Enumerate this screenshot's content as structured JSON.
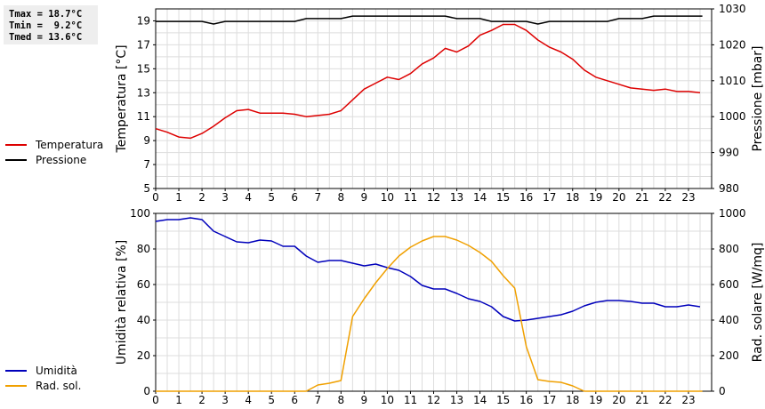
{
  "stats": {
    "tmax": "Tmax = 18.7°C",
    "tmin": "Tmin =  9.2°C",
    "tmed": "Tmed = 13.6°C"
  },
  "chart_data": [
    {
      "type": "line",
      "x_ticks": [
        "0",
        "1",
        "2",
        "3",
        "4",
        "5",
        "6",
        "7",
        "8",
        "9",
        "10",
        "11",
        "12",
        "13",
        "14",
        "15",
        "16",
        "17",
        "18",
        "19",
        "20",
        "21",
        "22",
        "23"
      ],
      "xlim": [
        0,
        24
      ],
      "ylabel_left": "Temperatura [°C]",
      "ylabel_right": "Pressione [mbar]",
      "ylim_left": [
        5,
        20
      ],
      "yticks_left": [
        "5",
        "7",
        "9",
        "11",
        "13",
        "15",
        "17",
        "19"
      ],
      "ylim_right": [
        980,
        1030
      ],
      "yticks_right": [
        "980",
        "990",
        "1000",
        "1010",
        "1020",
        "1030"
      ],
      "grid": true,
      "legend_position": "left",
      "series": [
        {
          "name": "Temperatura",
          "axis": "left",
          "color": "#dd0000",
          "points": [
            [
              0,
              10.0
            ],
            [
              0.5,
              9.7
            ],
            [
              1,
              9.3
            ],
            [
              1.5,
              9.2
            ],
            [
              2,
              9.6
            ],
            [
              2.5,
              10.2
            ],
            [
              3,
              10.9
            ],
            [
              3.5,
              11.5
            ],
            [
              4,
              11.6
            ],
            [
              4.5,
              11.3
            ],
            [
              5,
              11.3
            ],
            [
              5.5,
              11.3
            ],
            [
              6,
              11.2
            ],
            [
              6.5,
              11.0
            ],
            [
              7,
              11.1
            ],
            [
              7.5,
              11.2
            ],
            [
              8,
              11.5
            ],
            [
              8.5,
              12.4
            ],
            [
              9,
              13.3
            ],
            [
              9.5,
              13.8
            ],
            [
              10,
              14.3
            ],
            [
              10.5,
              14.1
            ],
            [
              11,
              14.6
            ],
            [
              11.5,
              15.4
            ],
            [
              12,
              15.9
            ],
            [
              12.5,
              16.7
            ],
            [
              13,
              16.4
            ],
            [
              13.5,
              16.9
            ],
            [
              14,
              17.8
            ],
            [
              14.5,
              18.2
            ],
            [
              15,
              18.7
            ],
            [
              15.5,
              18.7
            ],
            [
              16,
              18.2
            ],
            [
              16.5,
              17.4
            ],
            [
              17,
              16.8
            ],
            [
              17.5,
              16.4
            ],
            [
              18,
              15.8
            ],
            [
              18.5,
              14.9
            ],
            [
              19,
              14.3
            ],
            [
              19.5,
              14.0
            ],
            [
              20,
              13.7
            ],
            [
              20.5,
              13.4
            ],
            [
              21,
              13.3
            ],
            [
              21.5,
              13.2
            ],
            [
              22,
              13.3
            ],
            [
              22.5,
              13.1
            ],
            [
              23,
              13.1
            ],
            [
              23.5,
              13.0
            ]
          ]
        },
        {
          "name": "Pressione",
          "axis": "right",
          "color": "#000000",
          "points": [
            [
              0,
              1026.5
            ],
            [
              2,
              1026.5
            ],
            [
              2.5,
              1025.8
            ],
            [
              3,
              1026.5
            ],
            [
              6,
              1026.5
            ],
            [
              6.5,
              1027.3
            ],
            [
              8,
              1027.3
            ],
            [
              8.5,
              1028.0
            ],
            [
              12.5,
              1028.0
            ],
            [
              13,
              1027.3
            ],
            [
              14,
              1027.3
            ],
            [
              14.5,
              1026.5
            ],
            [
              16,
              1026.5
            ],
            [
              16.5,
              1025.8
            ],
            [
              17,
              1026.5
            ],
            [
              19.5,
              1026.5
            ],
            [
              20,
              1027.3
            ],
            [
              21,
              1027.3
            ],
            [
              21.5,
              1028.0
            ],
            [
              23.6,
              1028.0
            ]
          ]
        }
      ]
    },
    {
      "type": "line",
      "x_ticks": [
        "0",
        "1",
        "2",
        "3",
        "4",
        "5",
        "6",
        "7",
        "8",
        "9",
        "10",
        "11",
        "12",
        "13",
        "14",
        "15",
        "16",
        "17",
        "18",
        "19",
        "20",
        "21",
        "22",
        "23"
      ],
      "xlim": [
        0,
        24
      ],
      "ylabel_left": "Umidità relativa [%]",
      "ylabel_right": "Rad. solare [W/mq]",
      "ylim_left": [
        0,
        100
      ],
      "yticks_left": [
        "0",
        "20",
        "40",
        "60",
        "80",
        "100"
      ],
      "ylim_right": [
        0,
        1000
      ],
      "yticks_right": [
        "0",
        "200",
        "400",
        "600",
        "800",
        "1000"
      ],
      "grid": true,
      "legend_position": "left",
      "series": [
        {
          "name": "Umidità",
          "axis": "left",
          "color": "#0000bb",
          "points": [
            [
              0,
              95.5
            ],
            [
              0.5,
              96.5
            ],
            [
              1,
              96.5
            ],
            [
              1.5,
              97.5
            ],
            [
              2,
              96.5
            ],
            [
              2.5,
              90
            ],
            [
              3,
              87
            ],
            [
              3.5,
              84
            ],
            [
              4,
              83.5
            ],
            [
              4.5,
              85
            ],
            [
              5,
              84.5
            ],
            [
              5.5,
              81.5
            ],
            [
              6,
              81.5
            ],
            [
              6.5,
              76
            ],
            [
              7,
              72.5
            ],
            [
              7.5,
              73.5
            ],
            [
              8,
              73.5
            ],
            [
              8.5,
              72
            ],
            [
              9,
              70.5
            ],
            [
              9.5,
              71.5
            ],
            [
              10,
              69.5
            ],
            [
              10.5,
              68
            ],
            [
              11,
              64.5
            ],
            [
              11.5,
              59.5
            ],
            [
              12,
              57.5
            ],
            [
              12.5,
              57.5
            ],
            [
              13,
              55
            ],
            [
              13.5,
              52
            ],
            [
              14,
              50.5
            ],
            [
              14.5,
              47.5
            ],
            [
              15,
              42
            ],
            [
              15.5,
              39.5
            ],
            [
              16,
              40
            ],
            [
              16.5,
              41
            ],
            [
              17,
              42
            ],
            [
              17.5,
              43
            ],
            [
              18,
              45
            ],
            [
              18.5,
              48
            ],
            [
              19,
              50
            ],
            [
              19.5,
              51
            ],
            [
              20,
              51
            ],
            [
              20.5,
              50.5
            ],
            [
              21,
              49.5
            ],
            [
              21.5,
              49.5
            ],
            [
              22,
              47.5
            ],
            [
              22.5,
              47.5
            ],
            [
              23,
              48.5
            ],
            [
              23.5,
              47.5
            ]
          ]
        },
        {
          "name": "Rad. sol.",
          "axis": "right",
          "color": "#f0a000",
          "points": [
            [
              0,
              0
            ],
            [
              6.5,
              0
            ],
            [
              7,
              35
            ],
            [
              7.5,
              45
            ],
            [
              8,
              60
            ],
            [
              8.5,
              420
            ],
            [
              9,
              520
            ],
            [
              9.5,
              610
            ],
            [
              10,
              690
            ],
            [
              10.5,
              760
            ],
            [
              11,
              810
            ],
            [
              11.5,
              845
            ],
            [
              12,
              870
            ],
            [
              12.5,
              870
            ],
            [
              13,
              850
            ],
            [
              13.5,
              820
            ],
            [
              14,
              780
            ],
            [
              14.5,
              730
            ],
            [
              15,
              650
            ],
            [
              15.5,
              580
            ],
            [
              16,
              250
            ],
            [
              16.5,
              65
            ],
            [
              17,
              55
            ],
            [
              17.5,
              50
            ],
            [
              18,
              30
            ],
            [
              18.5,
              0
            ],
            [
              23.6,
              0
            ]
          ]
        }
      ]
    }
  ]
}
